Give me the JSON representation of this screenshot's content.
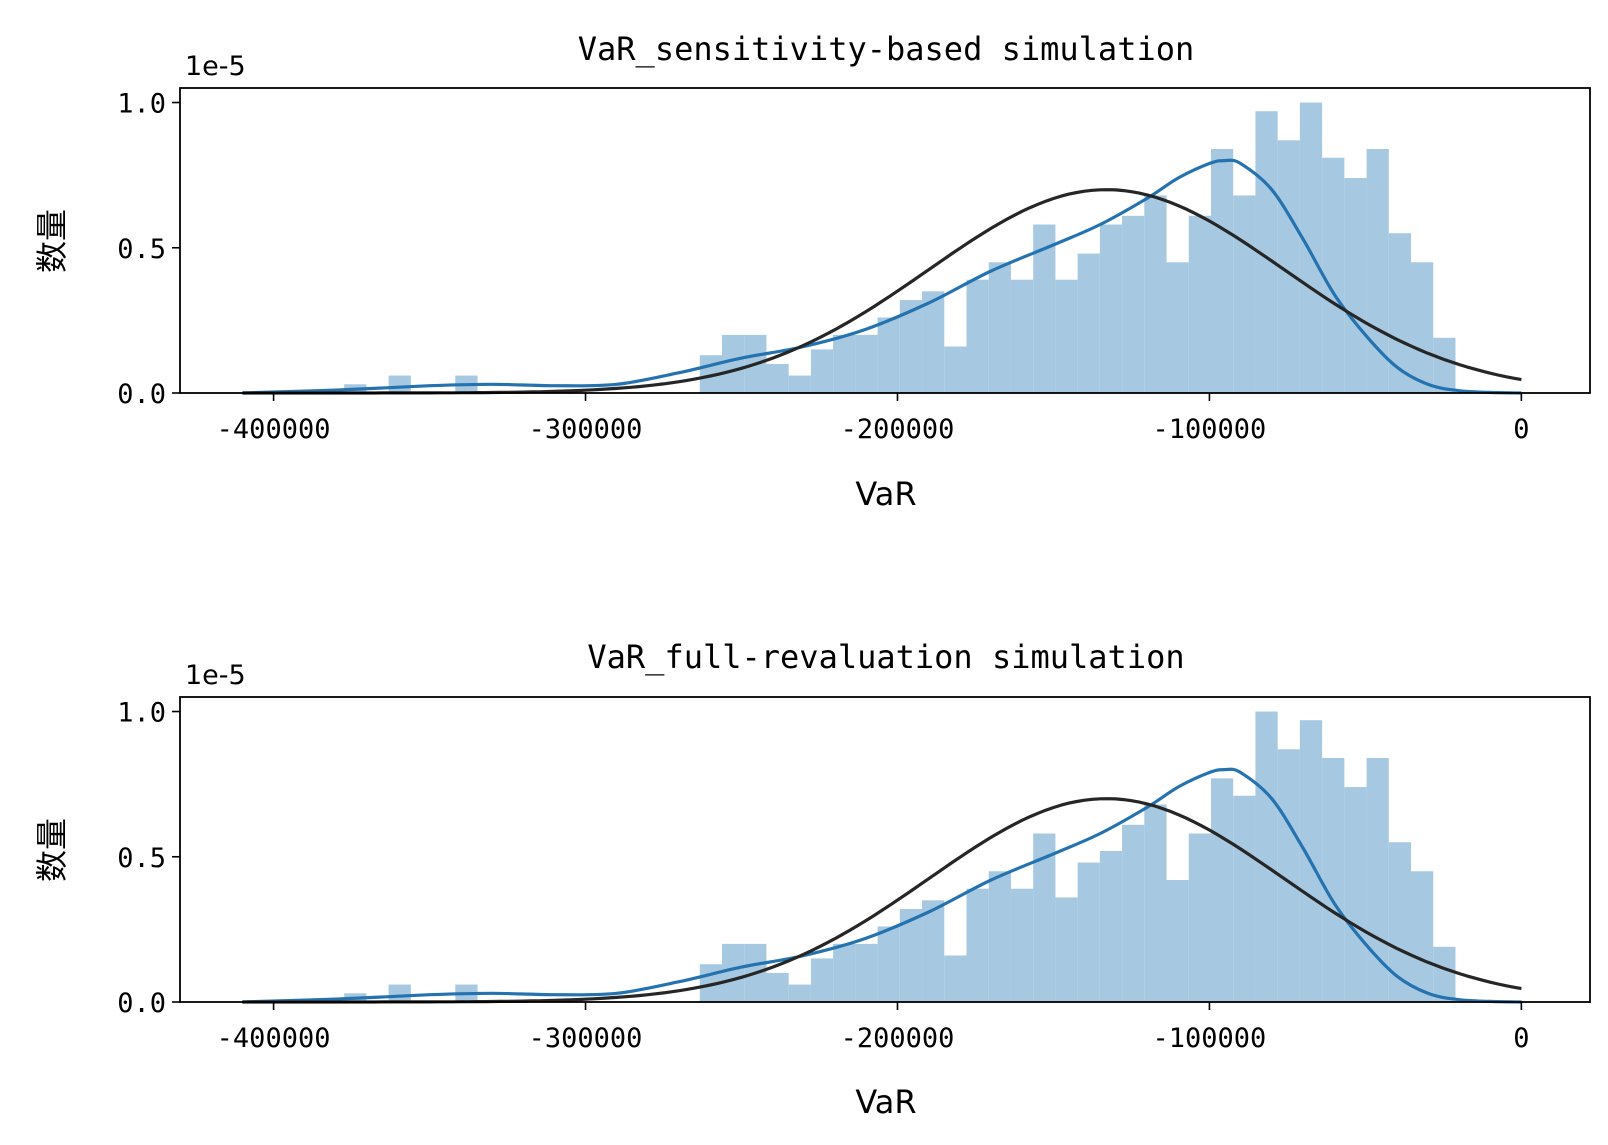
{
  "chart_data": [
    {
      "type": "histogram",
      "title": "VaR_sensitivity-based simulation",
      "xlabel": "VaR",
      "ylabel": "数量",
      "y_offset_label": "1e-5",
      "xlim": [
        -430000,
        22000
      ],
      "ylim": [
        0,
        1.05
      ],
      "xticks": [
        -400000,
        -300000,
        -200000,
        -100000,
        0
      ],
      "xtick_labels": [
        "-400000",
        "-300000",
        "-200000",
        "-100000",
        "0"
      ],
      "yticks": [
        0,
        0.5,
        1.0
      ],
      "ytick_labels": [
        "0.0",
        "0.5",
        "1.0"
      ],
      "grid": false,
      "bins": {
        "start": -413000,
        "width": 7125,
        "heights": [
          0,
          0,
          0,
          0,
          0,
          0.03,
          0,
          0.06,
          0,
          0,
          0.06,
          0,
          0,
          0,
          0,
          0,
          0,
          0,
          0,
          0,
          0,
          0.13,
          0.2,
          0.2,
          0.1,
          0.06,
          0.15,
          0.2,
          0.2,
          0.26,
          0.32,
          0.35,
          0.16,
          0.39,
          0.45,
          0.39,
          0.58,
          0.39,
          0.48,
          0.58,
          0.61,
          0.68,
          0.45,
          0.61,
          0.84,
          0.68,
          0.97,
          0.87,
          1.0,
          0.81,
          0.74,
          0.84,
          0.55,
          0.45,
          0.19
        ]
      },
      "series": [
        {
          "kind": "kde",
          "x": [
            -410000,
            -380000,
            -350000,
            -330000,
            -310000,
            -290000,
            -270000,
            -250000,
            -230000,
            -210000,
            -190000,
            -170000,
            -150000,
            -135000,
            -120000,
            -110000,
            -100000,
            -95000,
            -90000,
            -80000,
            -70000,
            -60000,
            -50000,
            -40000,
            -30000,
            -20000,
            -10000,
            0
          ],
          "y": [
            0.0,
            0.01,
            0.025,
            0.03,
            0.025,
            0.03,
            0.07,
            0.12,
            0.16,
            0.22,
            0.31,
            0.42,
            0.51,
            0.58,
            0.67,
            0.74,
            0.79,
            0.8,
            0.79,
            0.7,
            0.53,
            0.34,
            0.2,
            0.09,
            0.03,
            0.008,
            0.002,
            0.0
          ]
        },
        {
          "kind": "normal_fit",
          "mean": -133000,
          "std": 57000,
          "peak": 0.7
        }
      ]
    },
    {
      "type": "histogram",
      "title": "VaR_full-revaluation simulation",
      "xlabel": "VaR",
      "ylabel": "数量",
      "y_offset_label": "1e-5",
      "xlim": [
        -430000,
        22000
      ],
      "ylim": [
        0,
        1.05
      ],
      "xticks": [
        -400000,
        -300000,
        -200000,
        -100000,
        0
      ],
      "xtick_labels": [
        "-400000",
        "-300000",
        "-200000",
        "-100000",
        "0"
      ],
      "yticks": [
        0,
        0.5,
        1.0
      ],
      "ytick_labels": [
        "0.0",
        "0.5",
        "1.0"
      ],
      "grid": false,
      "bins": {
        "start": -413000,
        "width": 7125,
        "heights": [
          0,
          0,
          0,
          0,
          0,
          0.03,
          0,
          0.06,
          0,
          0,
          0.06,
          0,
          0,
          0,
          0,
          0,
          0,
          0,
          0,
          0,
          0,
          0.13,
          0.2,
          0.2,
          0.1,
          0.06,
          0.15,
          0.2,
          0.2,
          0.26,
          0.32,
          0.35,
          0.16,
          0.39,
          0.45,
          0.39,
          0.58,
          0.36,
          0.48,
          0.52,
          0.61,
          0.68,
          0.42,
          0.58,
          0.77,
          0.71,
          1.0,
          0.87,
          0.97,
          0.84,
          0.74,
          0.84,
          0.55,
          0.45,
          0.19
        ]
      },
      "series": [
        {
          "kind": "kde",
          "x": [
            -410000,
            -380000,
            -350000,
            -330000,
            -310000,
            -290000,
            -270000,
            -250000,
            -230000,
            -210000,
            -190000,
            -170000,
            -150000,
            -135000,
            -120000,
            -110000,
            -100000,
            -95000,
            -90000,
            -80000,
            -70000,
            -60000,
            -50000,
            -40000,
            -30000,
            -20000,
            -10000,
            0
          ],
          "y": [
            0.0,
            0.01,
            0.025,
            0.03,
            0.025,
            0.03,
            0.07,
            0.12,
            0.16,
            0.22,
            0.31,
            0.42,
            0.51,
            0.58,
            0.67,
            0.74,
            0.79,
            0.8,
            0.79,
            0.7,
            0.53,
            0.34,
            0.2,
            0.09,
            0.03,
            0.008,
            0.002,
            0.0
          ]
        },
        {
          "kind": "normal_fit",
          "mean": -133000,
          "std": 57000,
          "peak": 0.7
        }
      ]
    }
  ],
  "colors": {
    "bars": "#a6c8e0",
    "kde": "#2473b0",
    "fit": "#262626",
    "axis": "#000000"
  }
}
